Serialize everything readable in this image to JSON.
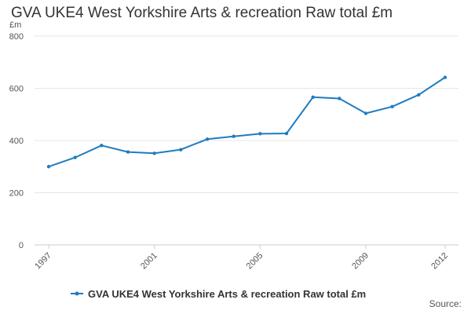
{
  "chart_data": {
    "type": "line",
    "title": "GVA UKE4 West Yorkshire Arts & recreation Raw total £m",
    "ylabel": "£m",
    "xlabel": "",
    "ylim": [
      0,
      800
    ],
    "yticks": [
      0,
      200,
      400,
      600,
      800
    ],
    "xticks": [
      1997,
      2001,
      2005,
      2009,
      2012
    ],
    "grid": true,
    "legend_position": "bottom",
    "series": [
      {
        "name": "GVA UKE4 West Yorkshire Arts & recreation Raw total £m",
        "color": "#1f7cc1",
        "x": [
          1997,
          1998,
          1999,
          2000,
          2001,
          2002,
          2003,
          2004,
          2005,
          2006,
          2007,
          2008,
          2009,
          2010,
          2011,
          2012
        ],
        "values": [
          300,
          335,
          381,
          356,
          351,
          365,
          405,
          416,
          426,
          427,
          566,
          561,
          504,
          530,
          575,
          642
        ]
      }
    ]
  },
  "source_label": "Source:"
}
